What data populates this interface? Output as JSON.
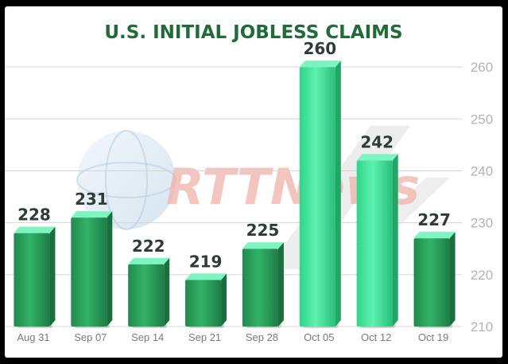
{
  "chart_data": {
    "type": "bar",
    "title": "U.S. INITIAL JOBLESS CLAIMS",
    "categories": [
      "Aug 31",
      "Sep 07",
      "Sep 14",
      "Sep 21",
      "Sep 28",
      "Oct 05",
      "Oct 12",
      "Oct 19"
    ],
    "values": [
      228,
      231,
      222,
      219,
      225,
      260,
      242,
      227
    ],
    "data_labels": [
      "228",
      "231",
      "222",
      "219",
      "225",
      "260",
      "242",
      "227"
    ],
    "ylim": [
      210,
      264
    ],
    "yticks": [
      210,
      220,
      230,
      240,
      250,
      260
    ],
    "ytick_labels": [
      "210",
      "220",
      "230",
      "240",
      "250",
      "260"
    ],
    "grid": true,
    "axis_side": "right",
    "colors": {
      "bar_front_dark": "#2a9d59",
      "bar_front_light": "#44e39a",
      "bar_top": "#7cf5c0",
      "title": "#1f6b3a",
      "grid": "#d4d4d4"
    }
  },
  "watermark": {
    "text": "RTTNews",
    "colors": {
      "red": "#f2b6ae",
      "blue": "#cfe0ef",
      "gray": "#d9d9d9"
    }
  }
}
